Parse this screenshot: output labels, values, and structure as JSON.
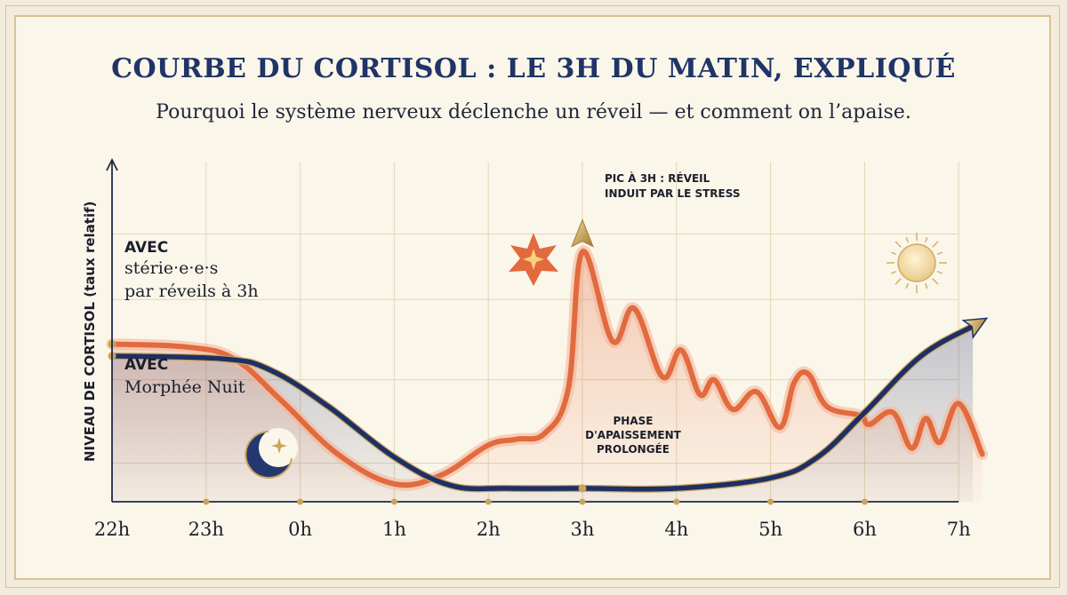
{
  "title": "COURBE DU CORTISOL : LE 3H DU MATIN, EXPLIQUÉ",
  "subtitle": "Pourquoi le système nerveux déclenche un réveil — et comment on l’apaise.",
  "colors": {
    "stress_series": "#e26a3f",
    "calm_series": "#1d2f66",
    "title": "#1f3467",
    "gold": "#c9a55a",
    "background": "#fbf6ea"
  },
  "icons": [
    "moon-icon",
    "sun-icon",
    "burst-icon",
    "arrow-tip-icon"
  ],
  "chart_data": {
    "type": "line",
    "title": "COURBE DU CORTISOL : LE 3H DU MATIN, EXPLIQUÉ",
    "ylabel": "NIVEAU DE CORTISOL (taux relatif)",
    "xlabel": "",
    "categories": [
      "22h",
      "23h",
      "0h",
      "1h",
      "2h",
      "3h",
      "4h",
      "5h",
      "6h",
      "7h"
    ],
    "xlim": [
      0,
      9
    ],
    "ylim": [
      0,
      10
    ],
    "grid": true,
    "series": [
      {
        "name": "AVEC stérie·e·e·s par réveils à 3h",
        "label_line1": "AVEC",
        "label_line2": "stérie·e·e·s",
        "label_line3": "par réveils à 3h",
        "color": "#e26a3f",
        "points": [
          [
            0,
            5.3
          ],
          [
            0.8,
            5.2
          ],
          [
            1.3,
            4.8
          ],
          [
            1.8,
            3.4
          ],
          [
            2.4,
            1.6
          ],
          [
            3.0,
            0.6
          ],
          [
            3.5,
            0.9
          ],
          [
            4.0,
            1.9
          ],
          [
            4.3,
            2.1
          ],
          [
            4.6,
            2.3
          ],
          [
            4.85,
            3.8
          ],
          [
            5.0,
            8.4
          ],
          [
            5.32,
            5.4
          ],
          [
            5.55,
            6.5
          ],
          [
            5.85,
            4.2
          ],
          [
            6.05,
            5.1
          ],
          [
            6.25,
            3.6
          ],
          [
            6.4,
            4.1
          ],
          [
            6.6,
            3.1
          ],
          [
            6.85,
            3.7
          ],
          [
            7.1,
            2.5
          ],
          [
            7.25,
            4.0
          ],
          [
            7.4,
            4.3
          ],
          [
            7.6,
            3.2
          ],
          [
            7.95,
            2.9
          ],
          [
            8.05,
            2.6
          ],
          [
            8.3,
            3.0
          ],
          [
            8.5,
            1.8
          ],
          [
            8.65,
            2.8
          ],
          [
            8.8,
            2.0
          ],
          [
            9.0,
            3.3
          ],
          [
            9.25,
            1.6
          ]
        ]
      },
      {
        "name": "AVEC Morphée Nuit",
        "label_line1": "AVEC",
        "label_line2": "Morphée Nuit",
        "color": "#1d2f66",
        "points": [
          [
            0,
            4.9
          ],
          [
            1.2,
            4.8
          ],
          [
            1.7,
            4.4
          ],
          [
            2.3,
            3.2
          ],
          [
            3.0,
            1.5
          ],
          [
            3.6,
            0.55
          ],
          [
            4.2,
            0.45
          ],
          [
            5.0,
            0.45
          ],
          [
            6.0,
            0.45
          ],
          [
            7.0,
            0.8
          ],
          [
            7.5,
            1.5
          ],
          [
            8.0,
            3.0
          ],
          [
            8.6,
            4.9
          ],
          [
            9.15,
            5.9
          ]
        ]
      }
    ],
    "annotations": [
      {
        "text_line1": "PIC À 3H : RÉVEIL",
        "text_line2": "INDUIT PAR LE STRESS",
        "x": 5.0,
        "y": 8.4
      },
      {
        "text_line1": "PHASE",
        "text_line2": "D'APAISSEMENT",
        "text_line3": "PROLONGÉE",
        "x": 5.0,
        "y": 0.45
      }
    ]
  }
}
